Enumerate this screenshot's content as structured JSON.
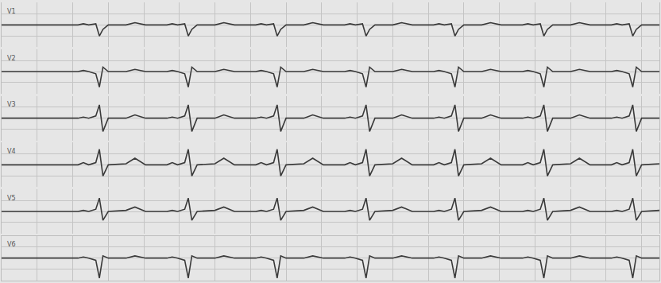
{
  "chart_data": {
    "type": "line",
    "x": [
      0,
      0.43,
      0.46,
      0.49,
      0.53,
      0.55,
      0.57,
      0.6,
      0.7,
      0.75,
      0.81,
      0.93,
      0.96,
      0.99,
      1.03,
      1.05,
      1.07,
      1.1,
      1.2,
      1.25,
      1.31,
      1.43,
      1.46,
      1.49,
      1.53,
      1.55,
      1.57,
      1.6,
      1.7,
      1.75,
      1.81,
      1.93,
      1.96,
      1.99,
      2.03,
      2.05,
      2.07,
      2.1,
      2.2,
      2.25,
      2.31,
      2.43,
      2.46,
      2.49,
      2.53,
      2.55,
      2.57,
      2.6,
      2.7,
      2.75,
      2.81,
      2.93,
      2.96,
      2.99,
      3.03,
      3.05,
      3.07,
      3.1,
      3.2,
      3.25,
      3.31,
      3.43,
      3.46,
      3.49,
      3.53,
      3.55,
      3.57,
      3.6,
      3.7
    ],
    "xlim": [
      0,
      3.7
    ],
    "xticks": [
      0,
      0.2,
      0.4,
      0.6,
      0.8,
      1,
      1.2,
      1.4,
      1.6,
      1.8,
      2,
      2.2,
      2.4,
      2.6,
      2.8,
      3,
      3.2,
      3.4,
      3.6
    ],
    "ylim": [
      -1,
      1
    ],
    "yticks": [
      -1,
      -0.5,
      0,
      0.5,
      1
    ],
    "grid": true,
    "tick_labels": false,
    "color": "#3a3a3a",
    "series": [
      {
        "name": "V1",
        "values": [
          0,
          0,
          0.05,
          0,
          0.05,
          -0.5,
          -0.2,
          0,
          0,
          0.1,
          0,
          0,
          0.05,
          0,
          0.05,
          -0.5,
          -0.2,
          0,
          0,
          0.1,
          0,
          0,
          0.05,
          0,
          0.05,
          -0.5,
          -0.2,
          0,
          0,
          0.1,
          0,
          0,
          0.05,
          0,
          0.05,
          -0.5,
          -0.2,
          0,
          0,
          0.1,
          0,
          0,
          0.05,
          0,
          0.05,
          -0.5,
          -0.2,
          0,
          0,
          0.1,
          0,
          0,
          0.05,
          0,
          0.05,
          -0.5,
          -0.2,
          0,
          0,
          0.1,
          0,
          0,
          0.05,
          0,
          0.05,
          -0.5,
          -0.2,
          0,
          0
        ]
      },
      {
        "name": "V2",
        "values": [
          0,
          0,
          0.05,
          0,
          -0.1,
          -0.7,
          0.2,
          0,
          0,
          0.1,
          0,
          0,
          0.05,
          0,
          -0.1,
          -0.7,
          0.2,
          0,
          0,
          0.1,
          0,
          0,
          0.05,
          0,
          -0.1,
          -0.7,
          0.2,
          0,
          0,
          0.1,
          0,
          0,
          0.05,
          0,
          -0.1,
          -0.7,
          0.2,
          0,
          0,
          0.1,
          0,
          0,
          0.05,
          0,
          -0.1,
          -0.7,
          0.2,
          0,
          0,
          0.1,
          0,
          0,
          0.05,
          0,
          -0.1,
          -0.7,
          0.2,
          0,
          0,
          0.1,
          0,
          0,
          0.05,
          0,
          -0.1,
          -0.7,
          0.2,
          0,
          0
        ]
      },
      {
        "name": "V3",
        "values": [
          0,
          0,
          0.05,
          0,
          0.1,
          0.6,
          -0.6,
          0,
          0,
          0.15,
          0,
          0,
          0.05,
          0,
          0.1,
          0.6,
          -0.6,
          0,
          0,
          0.15,
          0,
          0,
          0.05,
          0,
          0.1,
          0.6,
          -0.6,
          0,
          0,
          0.15,
          0,
          0,
          0.05,
          0,
          0.1,
          0.6,
          -0.6,
          0,
          0,
          0.15,
          0,
          0,
          0.05,
          0,
          0.1,
          0.6,
          -0.6,
          0,
          0,
          0.15,
          0,
          0,
          0.05,
          0,
          0.1,
          0.6,
          -0.6,
          0,
          0,
          0.15,
          0,
          0,
          0.05,
          0,
          0.1,
          0.6,
          -0.6,
          0,
          0
        ]
      },
      {
        "name": "V4",
        "values": [
          0,
          0,
          0.1,
          0,
          0.1,
          0.7,
          -0.5,
          0,
          0.05,
          0.3,
          0,
          0,
          0.1,
          0,
          0.1,
          0.7,
          -0.5,
          0,
          0.05,
          0.3,
          0,
          0,
          0.1,
          0,
          0.1,
          0.7,
          -0.5,
          0,
          0.05,
          0.3,
          0,
          0,
          0.1,
          0,
          0.1,
          0.7,
          -0.5,
          0,
          0.05,
          0.3,
          0,
          0,
          0.1,
          0,
          0.1,
          0.7,
          -0.5,
          0,
          0.05,
          0.3,
          0,
          0,
          0.1,
          0,
          0.1,
          0.7,
          -0.5,
          0,
          0.05,
          0.3,
          0,
          0,
          0.1,
          0,
          0.1,
          0.7,
          -0.5,
          0,
          0.05
        ]
      },
      {
        "name": "V5",
        "values": [
          0,
          0,
          0.05,
          0,
          0.1,
          0.6,
          -0.4,
          0,
          0.05,
          0.2,
          0,
          0,
          0.05,
          0,
          0.1,
          0.6,
          -0.4,
          0,
          0.05,
          0.2,
          0,
          0,
          0.05,
          0,
          0.1,
          0.6,
          -0.4,
          0,
          0.05,
          0.2,
          0,
          0,
          0.05,
          0,
          0.1,
          0.6,
          -0.4,
          0,
          0.05,
          0.2,
          0,
          0,
          0.05,
          0,
          0.1,
          0.6,
          -0.4,
          0,
          0.05,
          0.2,
          0,
          0,
          0.05,
          0,
          0.1,
          0.6,
          -0.4,
          0,
          0.05,
          0.2,
          0,
          0,
          0.05,
          0,
          0.1,
          0.6,
          -0.4,
          0,
          0.05
        ]
      },
      {
        "name": "V6",
        "values": [
          0,
          0,
          0.05,
          0,
          -0.1,
          -0.9,
          0.1,
          0,
          0,
          0.1,
          0,
          0,
          0.05,
          0,
          -0.1,
          -0.9,
          0.1,
          0,
          0,
          0.1,
          0,
          0,
          0.05,
          0,
          -0.1,
          -0.9,
          0.1,
          0,
          0,
          0.1,
          0,
          0,
          0.05,
          0,
          -0.1,
          -0.9,
          0.1,
          0,
          0,
          0.1,
          0,
          0,
          0.05,
          0,
          -0.1,
          -0.9,
          0.1,
          0,
          0,
          0.1,
          0,
          0,
          0.05,
          0,
          -0.1,
          -0.9,
          0.1,
          0,
          0,
          0.1,
          0,
          0,
          0.05,
          0,
          -0.1,
          -0.9,
          0.1,
          0,
          0
        ]
      }
    ]
  }
}
